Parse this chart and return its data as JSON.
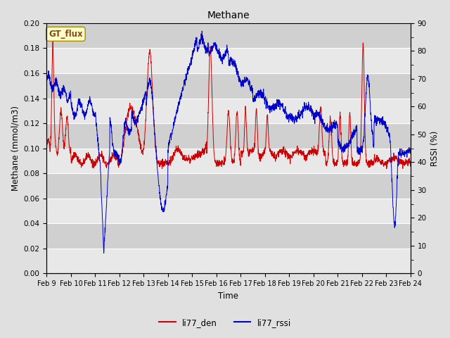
{
  "title": "Methane",
  "xlabel": "Time",
  "ylabel_left": "Methane (mmol/m3)",
  "ylabel_right": "RSSI (%)",
  "x_tick_labels": [
    "Feb 9",
    "Feb 10",
    "Feb 11",
    "Feb 12",
    "Feb 13",
    "Feb 14",
    "Feb 15",
    "Feb 16",
    "Feb 17",
    "Feb 18",
    "Feb 19",
    "Feb 20",
    "Feb 21",
    "Feb 22",
    "Feb 23",
    "Feb 24"
  ],
  "ylim_left": [
    0.0,
    0.2
  ],
  "ylim_right": [
    0,
    90
  ],
  "yticks_left": [
    0.0,
    0.02,
    0.04,
    0.06,
    0.08,
    0.1,
    0.12,
    0.14,
    0.16,
    0.18,
    0.2
  ],
  "yticks_right": [
    0,
    10,
    20,
    30,
    40,
    50,
    60,
    70,
    80,
    90
  ],
  "color_den": "#cc0000",
  "color_rssi": "#0000cc",
  "legend_label_den": "li77_den",
  "legend_label_rssi": "li77_rssi",
  "annotation_text": "GT_flux",
  "bg_color": "#e0e0e0",
  "plot_bg_color_light": "#e8e8e8",
  "plot_bg_color_dark": "#d0d0d0",
  "figsize": [
    6.4,
    4.8
  ],
  "dpi": 100
}
